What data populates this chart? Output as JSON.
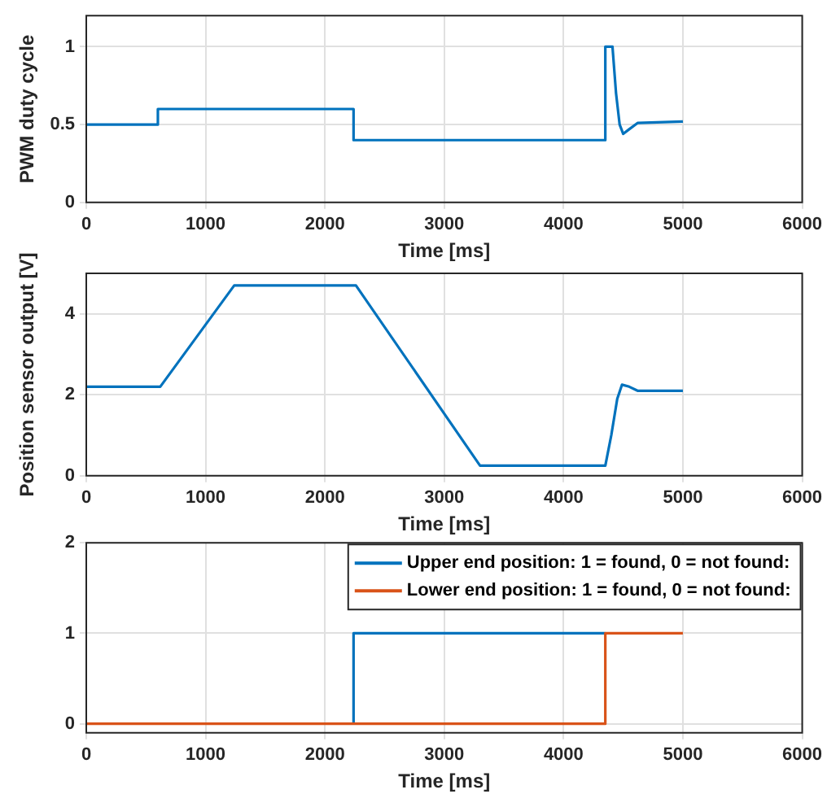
{
  "chart_data": [
    {
      "type": "line",
      "xlabel": "Time [ms]",
      "ylabel": "PWM duty cycle",
      "xlim": [
        0,
        6000
      ],
      "xticks": [
        0,
        1000,
        2000,
        3000,
        4000,
        5000,
        6000
      ],
      "ylim": [
        0,
        1.2
      ],
      "yticks": [
        0,
        0.5,
        1
      ],
      "grid": true,
      "legend": false,
      "series": [
        {
          "color": "#0072bd",
          "x": [
            0,
            600,
            600,
            2240,
            2240,
            4350,
            4350,
            4410,
            4440,
            4470,
            4500,
            4550,
            4620,
            5000
          ],
          "values": [
            0.5,
            0.5,
            0.6,
            0.6,
            0.4,
            0.4,
            1.0,
            1.0,
            0.7,
            0.5,
            0.44,
            0.47,
            0.51,
            0.52
          ]
        }
      ]
    },
    {
      "type": "line",
      "xlabel": "Time [ms]",
      "ylabel": "Position sensor output [V]",
      "xlim": [
        0,
        6000
      ],
      "xticks": [
        0,
        1000,
        2000,
        3000,
        4000,
        5000,
        6000
      ],
      "ylim": [
        0,
        5
      ],
      "yticks": [
        0,
        2,
        4
      ],
      "grid": true,
      "legend": false,
      "series": [
        {
          "color": "#0072bd",
          "x": [
            0,
            620,
            1240,
            2260,
            3300,
            4350,
            4400,
            4450,
            4490,
            4550,
            4620,
            5000
          ],
          "values": [
            2.2,
            2.2,
            4.7,
            4.7,
            0.25,
            0.25,
            1.0,
            1.9,
            2.25,
            2.2,
            2.1,
            2.1
          ]
        }
      ]
    },
    {
      "type": "step",
      "xlabel": "Time [ms]",
      "xlim": [
        0,
        6000
      ],
      "xticks": [
        0,
        1000,
        2000,
        3000,
        4000,
        5000,
        6000
      ],
      "ylim": [
        -0.1,
        2
      ],
      "yticks": [
        0,
        1,
        2
      ],
      "grid": true,
      "legend": "top right",
      "series": [
        {
          "name": "Upper end position: 1 = found, 0 = not found:",
          "color": "#0072bd",
          "x": [
            2240,
            2240,
            4350
          ],
          "values": [
            0,
            1,
            1
          ]
        },
        {
          "name": "Lower end position: 1 = found, 0 = not found:",
          "color": "#d95319",
          "x": [
            0,
            4350,
            5000
          ],
          "values": [
            0,
            1,
            1
          ]
        }
      ]
    }
  ]
}
